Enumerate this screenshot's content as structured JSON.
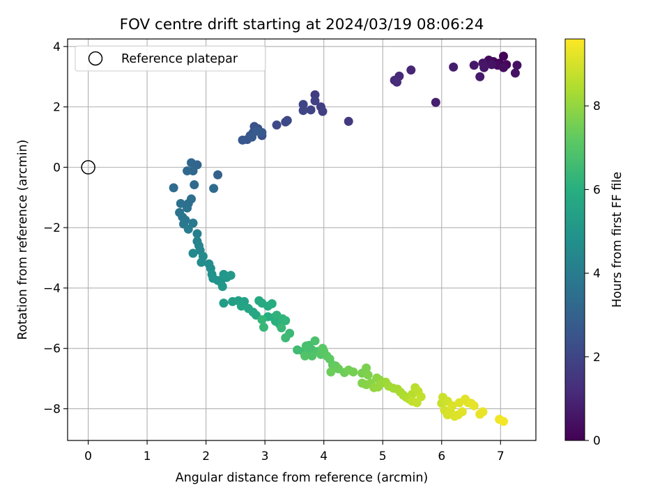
{
  "chart_data": {
    "type": "scatter",
    "title": "FOV centre drift starting at 2024/03/19 08:06:24",
    "xlabel": "Angular distance from reference (arcmin)",
    "ylabel": "Rotation from reference (arcmin)",
    "xlim": [
      -0.35,
      7.6
    ],
    "ylim": [
      -9.05,
      4.25
    ],
    "xticks": [
      0,
      1,
      2,
      3,
      4,
      5,
      6,
      7
    ],
    "yticks": [
      -8,
      -6,
      -4,
      -2,
      0,
      2,
      4
    ],
    "grid": true,
    "legend": {
      "position": "top-left",
      "entries": [
        "Reference platepar"
      ]
    },
    "reference_point": {
      "x": 0,
      "y": 0
    },
    "colorbar": {
      "label": "Hours from first FF file",
      "colormap": "viridis",
      "range": [
        0,
        9.6
      ],
      "ticks": [
        0,
        2,
        4,
        6,
        8
      ]
    },
    "points": [
      [
        7.05,
        3.68,
        0.05
      ],
      [
        6.98,
        3.45,
        0.1
      ],
      [
        6.88,
        3.5,
        0.15
      ],
      [
        7.1,
        3.4,
        0.2
      ],
      [
        6.95,
        3.38,
        0.25
      ],
      [
        6.8,
        3.55,
        0.3
      ],
      [
        7.05,
        3.3,
        0.35
      ],
      [
        7.28,
        3.38,
        0.4
      ],
      [
        7.25,
        3.12,
        0.45
      ],
      [
        6.85,
        3.4,
        0.5
      ],
      [
        6.7,
        3.45,
        0.55
      ],
      [
        6.72,
        3.3,
        0.6
      ],
      [
        6.55,
        3.38,
        0.65
      ],
      [
        6.65,
        3.0,
        0.7
      ],
      [
        6.2,
        3.32,
        0.75
      ],
      [
        5.9,
        2.15,
        0.8
      ],
      [
        5.48,
        3.22,
        1.0
      ],
      [
        5.28,
        3.02,
        1.1
      ],
      [
        5.2,
        2.88,
        1.15
      ],
      [
        5.24,
        2.82,
        1.2
      ],
      [
        4.42,
        1.52,
        1.6
      ],
      [
        3.85,
        2.4,
        1.7
      ],
      [
        3.95,
        2.0,
        1.75
      ],
      [
        3.98,
        1.85,
        1.8
      ],
      [
        3.85,
        2.2,
        1.85
      ],
      [
        3.78,
        1.9,
        1.9
      ],
      [
        3.65,
        2.08,
        1.95
      ],
      [
        3.65,
        1.88,
        2.0
      ],
      [
        3.38,
        1.55,
        2.05
      ],
      [
        3.35,
        1.5,
        2.1
      ],
      [
        3.2,
        1.4,
        2.15
      ],
      [
        2.95,
        1.05,
        2.3
      ],
      [
        2.88,
        1.28,
        2.35
      ],
      [
        2.82,
        1.35,
        2.4
      ],
      [
        2.8,
        1.15,
        2.45
      ],
      [
        2.75,
        1.05,
        2.5
      ],
      [
        2.7,
        0.92,
        2.55
      ],
      [
        2.62,
        0.9,
        2.6
      ],
      [
        2.95,
        1.15,
        2.65
      ],
      [
        2.78,
        1.0,
        2.7
      ],
      [
        2.86,
        1.2,
        2.72
      ],
      [
        2.2,
        -0.25,
        3.0
      ],
      [
        1.85,
        0.08,
        3.1
      ],
      [
        1.75,
        0.15,
        3.15
      ],
      [
        1.78,
        -0.12,
        3.2
      ],
      [
        1.68,
        -0.12,
        3.25
      ],
      [
        1.8,
        -0.58,
        3.3
      ],
      [
        2.13,
        -0.7,
        3.35
      ],
      [
        1.45,
        -0.68,
        3.4
      ],
      [
        1.75,
        -1.05,
        3.45
      ],
      [
        1.7,
        -1.2,
        3.5
      ],
      [
        1.57,
        -1.2,
        3.55
      ],
      [
        1.68,
        -1.35,
        3.6
      ],
      [
        1.55,
        -1.5,
        3.65
      ],
      [
        1.6,
        -1.65,
        3.7
      ],
      [
        1.65,
        -1.75,
        3.75
      ],
      [
        1.62,
        -1.88,
        3.85
      ],
      [
        1.78,
        -1.85,
        3.9
      ],
      [
        1.7,
        -2.05,
        4.0
      ],
      [
        1.85,
        -2.2,
        4.1
      ],
      [
        1.85,
        -2.45,
        4.2
      ],
      [
        1.88,
        -2.6,
        4.3
      ],
      [
        1.9,
        -2.75,
        4.4
      ],
      [
        1.78,
        -2.85,
        4.5
      ],
      [
        1.95,
        -2.95,
        4.55
      ],
      [
        1.92,
        -3.15,
        4.6
      ],
      [
        2.05,
        -3.2,
        4.65
      ],
      [
        2.08,
        -3.35,
        4.7
      ],
      [
        2.1,
        -3.55,
        4.8
      ],
      [
        2.12,
        -3.68,
        4.85
      ],
      [
        2.2,
        -3.75,
        4.9
      ],
      [
        2.25,
        -3.8,
        4.95
      ],
      [
        2.3,
        -3.55,
        5.0
      ],
      [
        2.35,
        -3.65,
        5.05
      ],
      [
        2.28,
        -3.95,
        5.1
      ],
      [
        2.42,
        -3.58,
        5.15
      ],
      [
        2.3,
        -4.5,
        5.3
      ],
      [
        2.45,
        -4.45,
        5.35
      ],
      [
        2.55,
        -4.42,
        5.4
      ],
      [
        2.65,
        -4.45,
        5.45
      ],
      [
        2.6,
        -4.6,
        5.55
      ],
      [
        2.72,
        -4.68,
        5.6
      ],
      [
        2.8,
        -4.8,
        5.65
      ],
      [
        2.85,
        -4.9,
        5.7
      ],
      [
        2.9,
        -4.42,
        5.75
      ],
      [
        2.95,
        -4.5,
        5.8
      ],
      [
        3.05,
        -4.6,
        5.85
      ],
      [
        3.12,
        -4.52,
        5.9
      ],
      [
        3.05,
        -4.95,
        5.95
      ],
      [
        3.15,
        -4.98,
        6.0
      ],
      [
        3.18,
        -5.1,
        6.05
      ],
      [
        3.25,
        -5.2,
        6.1
      ],
      [
        3.2,
        -4.9,
        6.15
      ],
      [
        3.3,
        -5.02,
        6.2
      ],
      [
        3.35,
        -5.08,
        6.25
      ],
      [
        2.95,
        -5.05,
        6.3
      ],
      [
        2.98,
        -5.3,
        6.35
      ],
      [
        3.28,
        -5.32,
        6.4
      ],
      [
        3.42,
        -5.5,
        6.45
      ],
      [
        3.35,
        -5.65,
        6.5
      ],
      [
        3.55,
        -6.05,
        6.55
      ],
      [
        3.65,
        -6.1,
        6.6
      ],
      [
        3.72,
        -6.15,
        6.65
      ],
      [
        3.75,
        -5.9,
        6.7
      ],
      [
        3.8,
        -6.05,
        6.72
      ],
      [
        3.7,
        -5.92,
        6.75
      ],
      [
        3.85,
        -5.75,
        6.8
      ],
      [
        3.9,
        -6.1,
        6.85
      ],
      [
        3.8,
        -6.25,
        6.9
      ],
      [
        3.68,
        -6.25,
        6.95
      ],
      [
        3.95,
        -6.2,
        7.0
      ],
      [
        4.0,
        -6.1,
        7.05
      ],
      [
        3.98,
        -6.0,
        7.1
      ],
      [
        4.05,
        -6.25,
        7.15
      ],
      [
        4.1,
        -6.35,
        7.2
      ],
      [
        4.15,
        -6.55,
        7.25
      ],
      [
        4.2,
        -6.58,
        7.3
      ],
      [
        4.25,
        -6.68,
        7.35
      ],
      [
        4.12,
        -6.78,
        7.4
      ],
      [
        4.35,
        -6.8,
        7.45
      ],
      [
        4.42,
        -6.72,
        7.5
      ],
      [
        4.5,
        -6.78,
        7.55
      ],
      [
        4.65,
        -6.82,
        7.6
      ],
      [
        4.72,
        -6.65,
        7.65
      ],
      [
        4.75,
        -6.88,
        7.7
      ],
      [
        4.65,
        -7.15,
        7.75
      ],
      [
        4.72,
        -7.2,
        7.8
      ],
      [
        4.8,
        -7.15,
        7.85
      ],
      [
        4.9,
        -6.98,
        7.9
      ],
      [
        4.95,
        -7.05,
        7.95
      ],
      [
        4.85,
        -7.3,
        8.0
      ],
      [
        4.92,
        -7.28,
        8.05
      ],
      [
        4.98,
        -7.15,
        8.1
      ],
      [
        5.05,
        -7.12,
        8.15
      ],
      [
        5.1,
        -7.25,
        8.2
      ],
      [
        5.18,
        -7.32,
        8.25
      ],
      [
        5.25,
        -7.35,
        8.3
      ],
      [
        5.3,
        -7.45,
        8.35
      ],
      [
        5.35,
        -7.55,
        8.4
      ],
      [
        5.4,
        -7.62,
        8.45
      ],
      [
        5.45,
        -7.68,
        8.5
      ],
      [
        5.5,
        -7.52,
        8.55
      ],
      [
        5.55,
        -7.3,
        8.6
      ],
      [
        5.6,
        -7.42,
        8.65
      ],
      [
        5.65,
        -7.6,
        8.7
      ],
      [
        5.5,
        -7.75,
        8.72
      ],
      [
        5.58,
        -7.8,
        8.75
      ],
      [
        6.0,
        -7.82,
        8.8
      ],
      [
        6.02,
        -7.62,
        8.85
      ],
      [
        6.1,
        -7.75,
        8.9
      ],
      [
        6.05,
        -8.05,
        8.95
      ],
      [
        6.1,
        -8.2,
        9.0
      ],
      [
        6.15,
        -8.1,
        9.05
      ],
      [
        6.18,
        -7.9,
        9.07
      ],
      [
        6.22,
        -8.25,
        9.1
      ],
      [
        6.28,
        -8.2,
        9.12
      ],
      [
        6.3,
        -7.8,
        9.14
      ],
      [
        6.35,
        -8.1,
        9.16
      ],
      [
        6.4,
        -7.68,
        9.18
      ],
      [
        6.45,
        -7.8,
        9.2
      ],
      [
        6.5,
        -7.82,
        9.22
      ],
      [
        6.55,
        -7.9,
        9.24
      ],
      [
        6.7,
        -8.1,
        9.28
      ],
      [
        6.65,
        -8.18,
        9.3
      ],
      [
        6.98,
        -8.35,
        9.4
      ],
      [
        7.05,
        -8.42,
        9.45
      ]
    ]
  }
}
